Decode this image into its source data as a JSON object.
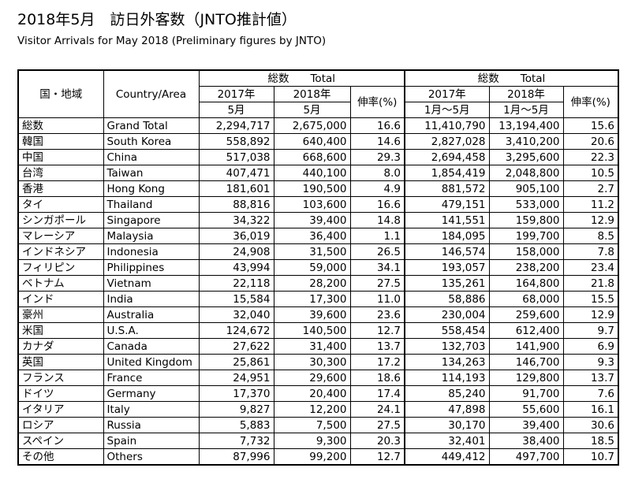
{
  "title": "2018年5月　訪日外客数（JNTO推計値）",
  "subtitle": "Visitor Arrivals for May 2018 (Preliminary figures by JNTO)",
  "headers": {
    "country_jp": "国・地域",
    "country_en": "Country/Area",
    "group_may": "総数　　Total",
    "group_ytd": "総数　　Total",
    "y2017": "2017年",
    "y2018": "2018年",
    "may": "5月",
    "ytd": "1月～5月",
    "growth": "伸率(%)"
  },
  "rows": [
    {
      "jp": "総数",
      "en": "Grand Total",
      "may2017": "2,294,717",
      "may2018": "2,675,000",
      "may_growth": "16.6",
      "ytd2017": "11,410,790",
      "ytd2018": "13,194,400",
      "ytd_growth": "15.6"
    },
    {
      "jp": "韓国",
      "en": "South Korea",
      "may2017": "558,892",
      "may2018": "640,400",
      "may_growth": "14.6",
      "ytd2017": "2,827,028",
      "ytd2018": "3,410,200",
      "ytd_growth": "20.6"
    },
    {
      "jp": "中国",
      "en": "China",
      "may2017": "517,038",
      "may2018": "668,600",
      "may_growth": "29.3",
      "ytd2017": "2,694,458",
      "ytd2018": "3,295,600",
      "ytd_growth": "22.3"
    },
    {
      "jp": "台湾",
      "en": "Taiwan",
      "may2017": "407,471",
      "may2018": "440,100",
      "may_growth": "8.0",
      "ytd2017": "1,854,419",
      "ytd2018": "2,048,800",
      "ytd_growth": "10.5"
    },
    {
      "jp": "香港",
      "en": "Hong Kong",
      "may2017": "181,601",
      "may2018": "190,500",
      "may_growth": "4.9",
      "ytd2017": "881,572",
      "ytd2018": "905,100",
      "ytd_growth": "2.7"
    },
    {
      "jp": "タイ",
      "en": "Thailand",
      "may2017": "88,816",
      "may2018": "103,600",
      "may_growth": "16.6",
      "ytd2017": "479,151",
      "ytd2018": "533,000",
      "ytd_growth": "11.2"
    },
    {
      "jp": "シンガポール",
      "en": "Singapore",
      "may2017": "34,322",
      "may2018": "39,400",
      "may_growth": "14.8",
      "ytd2017": "141,551",
      "ytd2018": "159,800",
      "ytd_growth": "12.9"
    },
    {
      "jp": "マレーシア",
      "en": "Malaysia",
      "may2017": "36,019",
      "may2018": "36,400",
      "may_growth": "1.1",
      "ytd2017": "184,095",
      "ytd2018": "199,700",
      "ytd_growth": "8.5"
    },
    {
      "jp": "インドネシア",
      "en": "Indonesia",
      "may2017": "24,908",
      "may2018": "31,500",
      "may_growth": "26.5",
      "ytd2017": "146,574",
      "ytd2018": "158,000",
      "ytd_growth": "7.8"
    },
    {
      "jp": "フィリピン",
      "en": "Philippines",
      "may2017": "43,994",
      "may2018": "59,000",
      "may_growth": "34.1",
      "ytd2017": "193,057",
      "ytd2018": "238,200",
      "ytd_growth": "23.4"
    },
    {
      "jp": "ベトナム",
      "en": "Vietnam",
      "may2017": "22,118",
      "may2018": "28,200",
      "may_growth": "27.5",
      "ytd2017": "135,261",
      "ytd2018": "164,800",
      "ytd_growth": "21.8"
    },
    {
      "jp": "インド",
      "en": "India",
      "may2017": "15,584",
      "may2018": "17,300",
      "may_growth": "11.0",
      "ytd2017": "58,886",
      "ytd2018": "68,000",
      "ytd_growth": "15.5"
    },
    {
      "jp": "豪州",
      "en": "Australia",
      "may2017": "32,040",
      "may2018": "39,600",
      "may_growth": "23.6",
      "ytd2017": "230,004",
      "ytd2018": "259,600",
      "ytd_growth": "12.9"
    },
    {
      "jp": "米国",
      "en": "U.S.A.",
      "may2017": "124,672",
      "may2018": "140,500",
      "may_growth": "12.7",
      "ytd2017": "558,454",
      "ytd2018": "612,400",
      "ytd_growth": "9.7"
    },
    {
      "jp": "カナダ",
      "en": "Canada",
      "may2017": "27,622",
      "may2018": "31,400",
      "may_growth": "13.7",
      "ytd2017": "132,703",
      "ytd2018": "141,900",
      "ytd_growth": "6.9"
    },
    {
      "jp": "英国",
      "en": "United Kingdom",
      "may2017": "25,861",
      "may2018": "30,300",
      "may_growth": "17.2",
      "ytd2017": "134,263",
      "ytd2018": "146,700",
      "ytd_growth": "9.3"
    },
    {
      "jp": "フランス",
      "en": "France",
      "may2017": "24,951",
      "may2018": "29,600",
      "may_growth": "18.6",
      "ytd2017": "114,193",
      "ytd2018": "129,800",
      "ytd_growth": "13.7"
    },
    {
      "jp": "ドイツ",
      "en": "Germany",
      "may2017": "17,370",
      "may2018": "20,400",
      "may_growth": "17.4",
      "ytd2017": "85,240",
      "ytd2018": "91,700",
      "ytd_growth": "7.6"
    },
    {
      "jp": "イタリア",
      "en": "Italy",
      "may2017": "9,827",
      "may2018": "12,200",
      "may_growth": "24.1",
      "ytd2017": "47,898",
      "ytd2018": "55,600",
      "ytd_growth": "16.1"
    },
    {
      "jp": "ロシア",
      "en": "Russia",
      "may2017": "5,883",
      "may2018": "7,500",
      "may_growth": "27.5",
      "ytd2017": "30,170",
      "ytd2018": "39,400",
      "ytd_growth": "30.6"
    },
    {
      "jp": "スペイン",
      "en": "Spain",
      "may2017": "7,732",
      "may2018": "9,300",
      "may_growth": "20.3",
      "ytd2017": "32,401",
      "ytd2018": "38,400",
      "ytd_growth": "18.5"
    },
    {
      "jp": "その他",
      "en": "Others",
      "may2017": "87,996",
      "may2018": "99,200",
      "may_growth": "12.7",
      "ytd2017": "449,412",
      "ytd2018": "497,700",
      "ytd_growth": "10.7"
    }
  ]
}
